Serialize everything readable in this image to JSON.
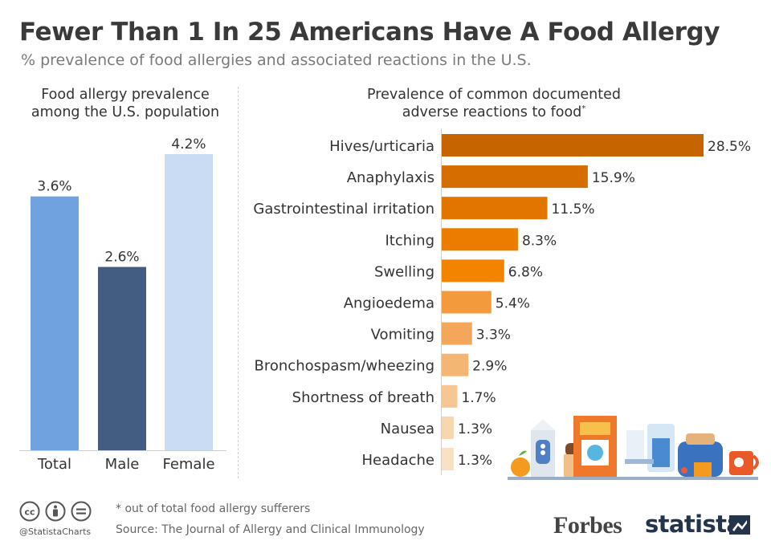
{
  "header": {
    "title": "Fewer Than 1 In 25 Americans Have A Food Allergy",
    "subtitle": "% prevalence of food allergies and associated reactions in the U.S."
  },
  "left_panel": {
    "title_line1": "Food allergy prevalence",
    "title_line2": "among the U.S. population"
  },
  "right_panel": {
    "title_line1": "Prevalence of common documented",
    "title_line2": "adverse reactions to food",
    "title_marker": "*"
  },
  "chart_data": [
    {
      "type": "bar",
      "orientation": "vertical",
      "categories": [
        "Total",
        "Male",
        "Female"
      ],
      "values": [
        3.6,
        2.6,
        4.2
      ],
      "value_labels": [
        "3.6%",
        "2.6%",
        "4.2%"
      ],
      "colors": [
        "#6fa2de",
        "#435d82",
        "#c9dcf3"
      ],
      "title": "Food allergy prevalence among the U.S. population",
      "unit": "%",
      "ylim": [
        0,
        4.2
      ]
    },
    {
      "type": "bar",
      "orientation": "horizontal",
      "categories": [
        "Hives/urticaria",
        "Anaphylaxis",
        "Gastrointestinal irritation",
        "Itching",
        "Swelling",
        "Angioedema",
        "Vomiting",
        "Bronchospasm/wheezing",
        "Shortness of breath",
        "Nausea",
        "Headache"
      ],
      "values": [
        28.5,
        15.9,
        11.5,
        8.3,
        6.8,
        5.4,
        3.3,
        2.9,
        1.7,
        1.3,
        1.3
      ],
      "value_labels": [
        "28.5%",
        "15.9%",
        "11.5%",
        "8.3%",
        "6.8%",
        "5.4%",
        "3.3%",
        "2.9%",
        "1.7%",
        "1.3%",
        "1.3%"
      ],
      "colors": [
        "#c66400",
        "#d66d00",
        "#e27500",
        "#ec7c00",
        "#f38400",
        "#f39a3c",
        "#f3a75a",
        "#f4b673",
        "#f6c793",
        "#f8d6ae",
        "#fae1c3"
      ],
      "title": "Prevalence of common documented adverse reactions to food*",
      "unit": "%",
      "xlim": [
        0,
        28.5
      ]
    }
  ],
  "footer": {
    "note": "* out of total food allergy sufferers",
    "source": "Source: The Journal of Allergy and Clinical Immunology",
    "handle": "@StatistaCharts",
    "forbes": "Forbes",
    "statista": "statista"
  },
  "icons": {
    "license": [
      "cc-icon",
      "attribution-icon",
      "equals-icon"
    ],
    "illustration": "food-illustration"
  }
}
